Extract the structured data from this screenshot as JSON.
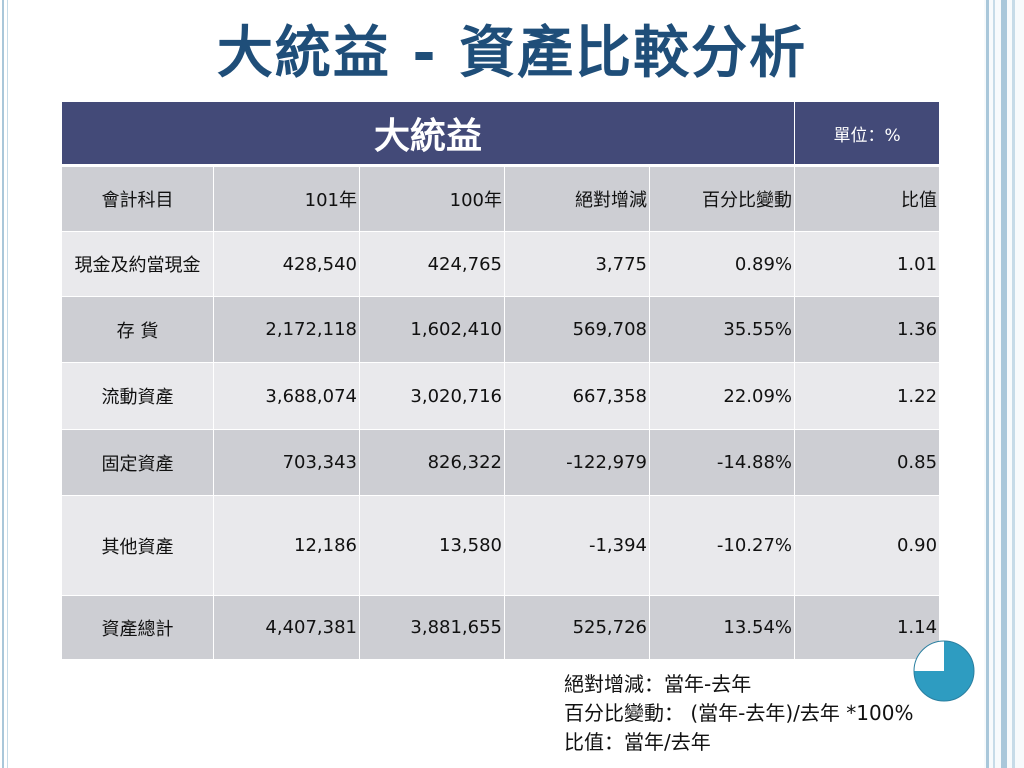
{
  "title": "大統益 - 資產比較分析",
  "table": {
    "title": "大統益",
    "unit": "單位：%",
    "columns": [
      "會計科目",
      "101年",
      "100年",
      "絕對增減",
      "百分比變動",
      "比值"
    ],
    "rows": [
      [
        "現金及約當現金",
        "428,540",
        "424,765",
        "3,775",
        "0.89%",
        "1.01"
      ],
      [
        "存 貨",
        "2,172,118",
        "1,602,410",
        "569,708",
        "35.55%",
        "1.36"
      ],
      [
        "流動資產",
        "3,688,074",
        "3,020,716",
        "667,358",
        "22.09%",
        "1.22"
      ],
      [
        "固定資產",
        "703,343",
        "826,322",
        "-122,979",
        "-14.88%",
        "0.85"
      ],
      [
        "其他資產",
        "12,186",
        "13,580",
        "-1,394",
        "-10.27%",
        "0.90"
      ],
      [
        "資產總計",
        "4,407,381",
        "3,881,655",
        "525,726",
        "13.54%",
        "1.14"
      ]
    ]
  },
  "notes": [
    "絕對增減：當年-去年",
    "百分比變動： (當年-去年)/去年 *100%",
    "比值：當年/去年"
  ],
  "colors": {
    "title": "#1f4e79",
    "header_bg": "#434a78",
    "band_dark": "#cdced3",
    "band_light": "#e9e9ec",
    "pie_fill": "#2e9cc1",
    "pie_line": "#2a7fa0"
  },
  "decoration": {
    "pie_fraction_filled": 0.75
  }
}
